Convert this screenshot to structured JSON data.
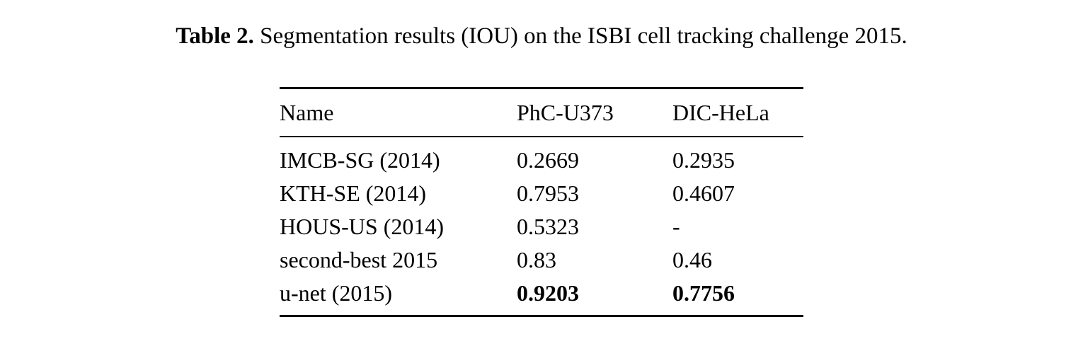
{
  "caption": {
    "label": "Table 2.",
    "text": " Segmentation results (IOU) on the ISBI cell tracking challenge 2015."
  },
  "table": {
    "columns": [
      "Name",
      "PhC-U373",
      "DIC-HeLa"
    ],
    "rows": [
      {
        "cells": [
          "IMCB-SG (2014)",
          "0.2669",
          "0.2935"
        ],
        "bold_values": false
      },
      {
        "cells": [
          "KTH-SE (2014)",
          "0.7953",
          "0.4607"
        ],
        "bold_values": false
      },
      {
        "cells": [
          "HOUS-US (2014)",
          "0.5323",
          "-"
        ],
        "bold_values": false
      },
      {
        "cells": [
          "second-best 2015",
          "0.83",
          "0.46"
        ],
        "bold_values": false
      },
      {
        "cells": [
          "u-net (2015)",
          "0.9203",
          "0.7756"
        ],
        "bold_values": true
      }
    ]
  },
  "colors": {
    "text": "#000000",
    "background": "#ffffff",
    "rule": "#000000"
  }
}
